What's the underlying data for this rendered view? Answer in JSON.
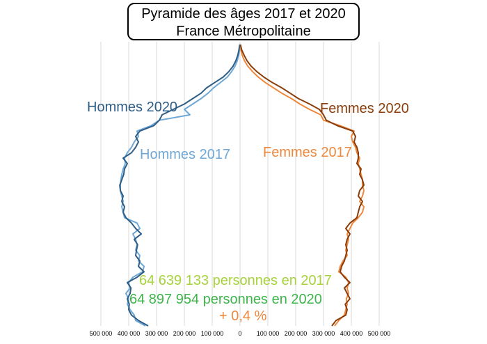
{
  "title": {
    "line1": "Pyramide des âges 2017 et 2020",
    "line2": "France Métropolitaine"
  },
  "colors": {
    "hommes_2020": "#2e5d86",
    "hommes_2017": "#6fa8d6",
    "femmes_2020": "#8a3d0a",
    "femmes_2017": "#f0883c",
    "total_2017": "#a6d23a",
    "total_2020": "#3db54a",
    "change": "#f0883c",
    "grid": "#d9d9d9",
    "axis_text": "#000000"
  },
  "annotations": {
    "total_2017": "64 639 133 personnes en 2017",
    "total_2020": "64 897 954 personnes en 2020",
    "change": "+ 0,4 %"
  },
  "chart_data": {
    "type": "line",
    "orientation": "horizontal-pyramid",
    "x_tick_labels": [
      "500 000",
      "400 000",
      "300 000",
      "200 000",
      "100 000",
      "0",
      "100 000",
      "200 000",
      "300 000",
      "400 000",
      "500 000"
    ],
    "xlim": [
      -550000,
      550000
    ],
    "ylim": [
      0,
      105
    ],
    "grid": true,
    "y": [
      0,
      2,
      4,
      6,
      8,
      10,
      12,
      14,
      16,
      18,
      20,
      22,
      24,
      26,
      28,
      30,
      32,
      34,
      36,
      38,
      40,
      42,
      44,
      46,
      48,
      50,
      52,
      54,
      56,
      58,
      60,
      62,
      64,
      66,
      68,
      70,
      72,
      74,
      76,
      78,
      80,
      82,
      84,
      86,
      88,
      90,
      92,
      94,
      96,
      98,
      100,
      102,
      104
    ],
    "series": [
      {
        "name": "Hommes 2020",
        "side": "left",
        "values": [
          -330000,
          -365000,
          -390000,
          -400000,
          -398000,
          -405000,
          -395000,
          -392000,
          -405000,
          -370000,
          -345000,
          -365000,
          -360000,
          -375000,
          -372000,
          -368000,
          -380000,
          -355000,
          -375000,
          -390000,
          -410000,
          -420000,
          -415000,
          -425000,
          -420000,
          -430000,
          -432000,
          -425000,
          -418000,
          -415000,
          -405000,
          -420000,
          -390000,
          -375000,
          -365000,
          -375000,
          -360000,
          -310000,
          -290000,
          -280000,
          -240000,
          -200000,
          -170000,
          -140000,
          -120000,
          -90000,
          -60000,
          -40000,
          -25000,
          -15000,
          -8000,
          -4000,
          -1000
        ]
      },
      {
        "name": "Hommes 2017",
        "side": "left",
        "values": [
          -340000,
          -375000,
          -380000,
          -395000,
          -405000,
          -400000,
          -410000,
          -395000,
          -400000,
          -385000,
          -350000,
          -345000,
          -365000,
          -360000,
          -375000,
          -370000,
          -375000,
          -385000,
          -360000,
          -370000,
          -415000,
          -420000,
          -425000,
          -420000,
          -425000,
          -430000,
          -430000,
          -428000,
          -425000,
          -420000,
          -412000,
          -415000,
          -405000,
          -390000,
          -380000,
          -365000,
          -370000,
          -320000,
          -290000,
          -180000,
          -200000,
          -170000,
          -140000,
          -115000,
          -95000,
          -70000,
          -45000,
          -30000,
          -18000,
          -10000,
          -5000,
          -2000,
          -500
        ]
      },
      {
        "name": "Femmes 2020",
        "side": "right",
        "values": [
          330000,
          345000,
          380000,
          385000,
          378000,
          395000,
          385000,
          375000,
          395000,
          375000,
          360000,
          365000,
          375000,
          380000,
          385000,
          380000,
          385000,
          395000,
          380000,
          395000,
          420000,
          425000,
          430000,
          440000,
          425000,
          430000,
          445000,
          440000,
          430000,
          435000,
          420000,
          425000,
          425000,
          420000,
          410000,
          415000,
          405000,
          350000,
          310000,
          300000,
          285000,
          250000,
          210000,
          180000,
          150000,
          115000,
          85000,
          60000,
          40000,
          25000,
          15000,
          6000,
          1500
        ]
      },
      {
        "name": "Femmes 2017",
        "side": "right",
        "values": [
          340000,
          355000,
          375000,
          380000,
          385000,
          382000,
          390000,
          385000,
          390000,
          380000,
          355000,
          360000,
          370000,
          385000,
          380000,
          385000,
          390000,
          385000,
          395000,
          405000,
          425000,
          440000,
          445000,
          430000,
          440000,
          445000,
          440000,
          440000,
          435000,
          430000,
          425000,
          430000,
          420000,
          415000,
          405000,
          400000,
          410000,
          360000,
          300000,
          290000,
          250000,
          215000,
          185000,
          150000,
          120000,
          90000,
          65000,
          45000,
          28000,
          16000,
          8000,
          3000,
          700
        ]
      }
    ],
    "series_labels": [
      "Hommes 2020",
      "Hommes 2017",
      "Femmes 2020",
      "Femmes 2017"
    ]
  }
}
